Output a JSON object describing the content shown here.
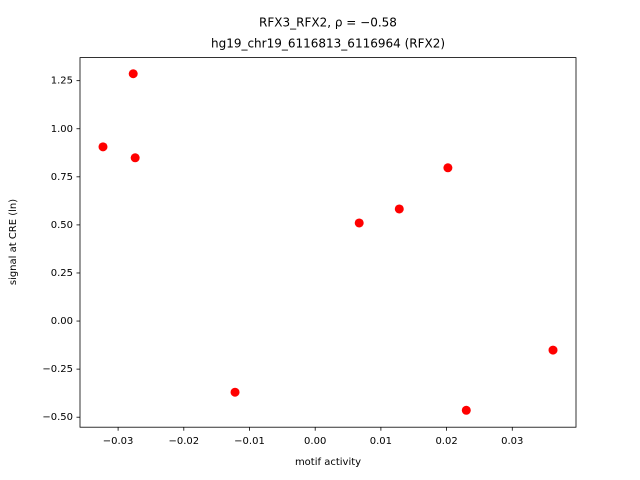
{
  "chart_data": {
    "type": "scatter",
    "title": "RFX3_RFX2, ρ = −0.58",
    "subtitle": "hg19_chr19_6116813_6116964 (RFX2)",
    "x_label": "motif activity",
    "y_label": "signal at CRE (ln)",
    "color": "#ff0000",
    "x": [
      -0.0323,
      -0.0277,
      -0.0274,
      -0.0122,
      0.0067,
      0.0128,
      0.0202,
      0.023,
      0.0362
    ],
    "values": [
      0.906,
      1.286,
      0.849,
      -0.37,
      0.51,
      0.583,
      0.797,
      -0.464,
      -0.151
    ],
    "xlim": [
      -0.0358,
      0.0397
    ],
    "ylim": [
      -0.552,
      1.37
    ],
    "xticks": [
      {
        "value": -0.03,
        "label": "−0.03"
      },
      {
        "value": -0.02,
        "label": "−0.02"
      },
      {
        "value": -0.01,
        "label": "−0.01"
      },
      {
        "value": 0,
        "label": "0.00"
      },
      0.01,
      0.02,
      0.03
    ],
    "yticks": [
      {
        "value": -0.5,
        "label": "−0.50"
      },
      {
        "value": -0.25,
        "label": "−0.25"
      },
      {
        "value": 0,
        "label": "0.00"
      },
      0.25,
      {
        "value": 0.5,
        "label": "0.50"
      },
      0.75,
      {
        "value": 1,
        "label": "1.00"
      },
      1.25
    ],
    "grid": false
  }
}
